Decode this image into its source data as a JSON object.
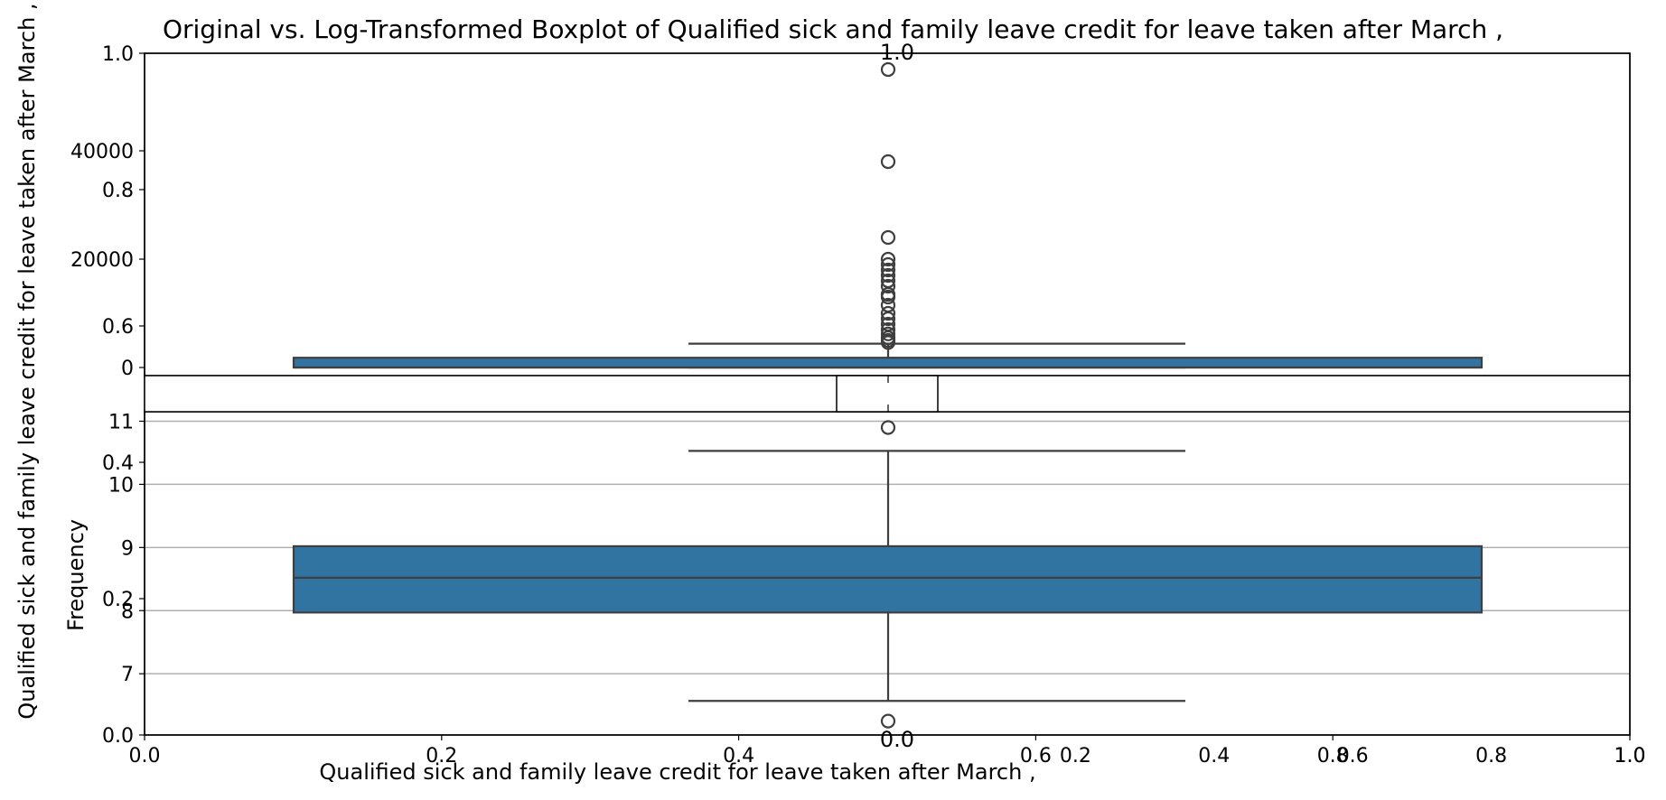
{
  "figure": {
    "title": "Original vs. Log-Transformed Boxplot of Qualified sick and family leave credit for leave taken after March ,",
    "outer_ylabel": "Qualified sick and family leave credit for leave taken after March ,",
    "outer_xlabel": "Qualified sick and family leave credit for leave taken after March ,",
    "inner_ylabel": "Frequency",
    "outer_xticks": [
      "0.0",
      "0.2",
      "0.4",
      "0.6",
      "0.8",
      "1.0"
    ],
    "outer_yticks": [
      "0.0",
      "0.2",
      "0.4",
      "0.6",
      "0.8",
      "1.0"
    ],
    "inset_xticks": [
      "0.0",
      "0.2",
      "0.4",
      "0.6",
      "0.8",
      "1.0"
    ],
    "inset_top_label": "1.0",
    "inset_bottom_label": "0.0"
  },
  "chart_data": [
    {
      "type": "boxplot",
      "panel": "original",
      "yticks": [
        "0",
        "20000",
        "40000"
      ],
      "ylim": [
        -1500,
        58000
      ],
      "box": {
        "q1": 0,
        "median": 0,
        "q3": 1800,
        "whisker_low": 0,
        "whisker_high": 4400
      },
      "outliers": [
        4600,
        5000,
        5500,
        6200,
        7000,
        8000,
        9000,
        10000,
        11500,
        13000,
        13500,
        15000,
        16000,
        17000,
        18000,
        19000,
        20000,
        24000,
        38000,
        55000
      ]
    },
    {
      "type": "boxplot",
      "panel": "log-transformed",
      "yticks": [
        "7",
        "8",
        "9",
        "10",
        "11"
      ],
      "ylim": [
        6.03,
        11.15
      ],
      "grid": true,
      "box": {
        "q1": 7.97,
        "median": 8.52,
        "q3": 9.02,
        "whisker_low": 6.57,
        "whisker_high": 10.53
      },
      "outliers": [
        10.9,
        6.25
      ]
    }
  ]
}
